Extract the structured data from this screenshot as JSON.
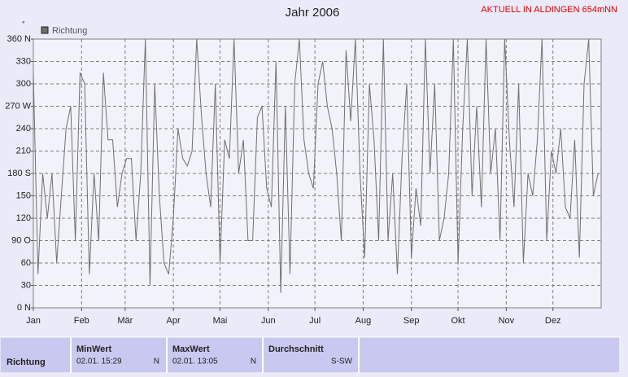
{
  "chart_data": {
    "type": "line",
    "title": "Jahr 2006",
    "subtitle": "AKTUELL IN ALDINGEN 654mNN",
    "y_unit": "°",
    "x": [
      1,
      4,
      7,
      10,
      13,
      16,
      19,
      22,
      25,
      28,
      31,
      34,
      37,
      40,
      43,
      46,
      49,
      52,
      55,
      58,
      61,
      64,
      67,
      70,
      73,
      76,
      79,
      82,
      85,
      88,
      91,
      94,
      97,
      100,
      103,
      106,
      109,
      112,
      115,
      118,
      121,
      124,
      127,
      130,
      133,
      136,
      139,
      142,
      145,
      148,
      151,
      154,
      157,
      160,
      163,
      166,
      169,
      172,
      175,
      178,
      181,
      184,
      187,
      190,
      193,
      196,
      199,
      202,
      205,
      208,
      211,
      214,
      217,
      220,
      223,
      226,
      229,
      232,
      235,
      238,
      241,
      244,
      247,
      250,
      253,
      256,
      259,
      262,
      265,
      268,
      271,
      274,
      277,
      280,
      283,
      286,
      289,
      292,
      295,
      298,
      301,
      304,
      307,
      310,
      313,
      316,
      319,
      322,
      325,
      328,
      331,
      334,
      337,
      340,
      343,
      346,
      349,
      352,
      355,
      358,
      361,
      364
    ],
    "series": [
      {
        "name": "Richtung",
        "color": "#707070",
        "values": [
          315,
          45,
          180,
          120,
          180,
          60,
          150,
          240,
          270,
          90,
          315,
          300,
          45,
          180,
          90,
          315,
          225,
          225,
          135,
          180,
          200,
          200,
          90,
          180,
          360,
          30,
          300,
          150,
          60,
          45,
          120,
          240,
          200,
          190,
          210,
          360,
          260,
          180,
          135,
          300,
          60,
          225,
          200,
          360,
          180,
          225,
          90,
          90,
          255,
          270,
          160,
          135,
          330,
          20,
          270,
          45,
          300,
          360,
          225,
          180,
          160,
          300,
          330,
          270,
          240,
          180,
          90,
          345,
          250,
          360,
          180,
          67,
          300,
          225,
          90,
          360,
          90,
          180,
          45,
          200,
          300,
          67,
          160,
          110,
          360,
          180,
          300,
          90,
          120,
          180,
          360,
          60,
          240,
          360,
          150,
          270,
          135,
          360,
          180,
          240,
          90,
          360,
          225,
          135,
          300,
          60,
          180,
          150,
          225,
          360,
          90,
          210,
          180,
          240,
          135,
          120,
          225,
          67,
          300,
          360,
          150,
          180
        ]
      }
    ],
    "xlim": [
      1,
      366
    ],
    "xticks": [
      {
        "value": 1,
        "label": "Jan"
      },
      {
        "value": 32,
        "label": "Feb"
      },
      {
        "value": 60,
        "label": "Mär"
      },
      {
        "value": 91,
        "label": "Apr"
      },
      {
        "value": 121,
        "label": "Mai"
      },
      {
        "value": 152,
        "label": "Jun"
      },
      {
        "value": 182,
        "label": "Jul"
      },
      {
        "value": 213,
        "label": "Aug"
      },
      {
        "value": 244,
        "label": "Sep"
      },
      {
        "value": 274,
        "label": "Okt"
      },
      {
        "value": 305,
        "label": "Nov"
      },
      {
        "value": 335,
        "label": "Dez"
      }
    ],
    "ylim": [
      0,
      360
    ],
    "yticks": [
      {
        "value": 0,
        "label": "0 N"
      },
      30,
      60,
      {
        "value": 90,
        "label": "90 O"
      },
      120,
      150,
      {
        "value": 180,
        "label": "180 S"
      },
      210,
      240,
      {
        "value": 270,
        "label": "270 W"
      },
      300,
      330,
      {
        "value": 360,
        "label": "360 N"
      }
    ],
    "grid": true
  },
  "table": {
    "headers": [
      "MinWert",
      "MaxWert",
      "Durchschnitt"
    ],
    "rows": [
      [
        "Richtung",
        "02.01. 15:29",
        "N",
        "02.01. 13:05",
        "N",
        "S-SW"
      ]
    ]
  }
}
